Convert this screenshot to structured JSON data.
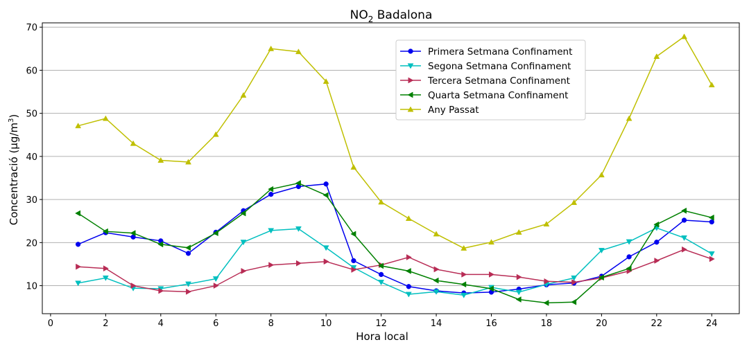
{
  "chart_data": {
    "type": "line",
    "title": "NO",
    "title_sub": "2",
    "title_rest": " Badalona",
    "xlabel": "Hora local",
    "ylabel_main": "Concentració (μg/m",
    "ylabel_sup": "3",
    "ylabel_end": ")",
    "xlim": [
      -0.3,
      25.0
    ],
    "ylim": [
      3.5,
      71
    ],
    "xticks": [
      0,
      2,
      4,
      6,
      8,
      10,
      12,
      14,
      16,
      18,
      20,
      22,
      24
    ],
    "yticks": [
      10,
      20,
      30,
      40,
      50,
      60,
      70
    ],
    "grid": "horizontal",
    "legend_position": "top-right",
    "x": [
      1,
      2,
      3,
      4,
      5,
      6,
      7,
      8,
      9,
      10,
      11,
      12,
      13,
      14,
      15,
      16,
      17,
      18,
      19,
      20,
      21,
      22,
      23,
      24
    ],
    "series": [
      {
        "name": "Primera Setmana Confinament",
        "color": "#0000ee",
        "marker": "circle",
        "values": [
          19.6,
          22.3,
          21.3,
          20.4,
          17.5,
          22.4,
          27.4,
          31.2,
          33.0,
          33.6,
          15.8,
          12.6,
          9.8,
          8.8,
          8.3,
          8.5,
          9.2,
          10.2,
          10.6,
          12.2,
          16.7,
          20.1,
          25.2,
          24.8
        ]
      },
      {
        "name": "Segona Setmana Confinament",
        "color": "#00bfbf",
        "marker": "triangle-down",
        "values": [
          10.6,
          11.8,
          9.4,
          9.3,
          10.4,
          11.6,
          20.1,
          22.8,
          23.2,
          18.8,
          14.2,
          10.8,
          8.0,
          8.6,
          7.8,
          9.6,
          8.5,
          10.3,
          11.8,
          18.2,
          20.2,
          23.4,
          21.1,
          17.4
        ]
      },
      {
        "name": "Tercera Setmana Confinament",
        "color": "#b82c55",
        "marker": "triangle-right",
        "values": [
          14.4,
          14.0,
          10.0,
          8.8,
          8.6,
          10.0,
          13.4,
          14.8,
          15.2,
          15.6,
          13.7,
          14.8,
          16.6,
          13.8,
          12.6,
          12.6,
          12.0,
          11.0,
          10.8,
          11.8,
          13.4,
          15.8,
          18.4,
          16.2
        ]
      },
      {
        "name": "Quarta Setmana Confinament",
        "color": "#008000",
        "marker": "triangle-left",
        "values": [
          26.8,
          22.6,
          22.2,
          19.6,
          18.8,
          22.2,
          26.8,
          32.4,
          33.8,
          31.0,
          22.0,
          14.6,
          13.4,
          11.2,
          10.3,
          9.3,
          6.8,
          6.0,
          6.2,
          11.9,
          14.0,
          24.2,
          27.4,
          25.8
        ]
      },
      {
        "name": "Any Passat",
        "color": "#bfbf00",
        "marker": "triangle-up",
        "values": [
          47.1,
          48.8,
          43.0,
          39.1,
          38.7,
          45.1,
          54.2,
          65.0,
          64.3,
          57.4,
          37.5,
          29.4,
          25.6,
          22.0,
          18.7,
          20.1,
          22.4,
          24.3,
          29.3,
          35.7,
          48.8,
          63.2,
          67.8,
          56.6
        ]
      }
    ]
  }
}
